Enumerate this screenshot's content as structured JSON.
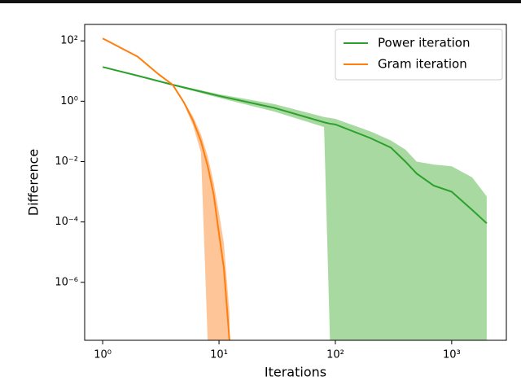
{
  "chart_data": {
    "type": "line",
    "xlabel": "Iterations",
    "ylabel": "Difference",
    "xscale": "log",
    "yscale": "log",
    "xlim": [
      0.7,
      2950
    ],
    "ylim": [
      1.2e-08,
      350
    ],
    "xticks": [
      {
        "value": 1,
        "label": "10⁰"
      },
      {
        "value": 10,
        "label": "10¹"
      },
      {
        "value": 100,
        "label": "10²"
      },
      {
        "value": 1000,
        "label": "10³"
      }
    ],
    "yticks": [
      {
        "value": 1e-06,
        "label": "10⁻⁶"
      },
      {
        "value": 0.0001,
        "label": "10⁻⁴"
      },
      {
        "value": 0.01,
        "label": "10⁻²"
      },
      {
        "value": 1,
        "label": "10⁰"
      },
      {
        "value": 100,
        "label": "10²"
      }
    ],
    "legend": "upper right",
    "series": [
      {
        "name": "Power iteration",
        "color": "#2ca02c",
        "band_color": "#a8d9a0",
        "x": [
          1,
          2,
          4,
          10,
          30,
          80,
          90,
          100,
          200,
          300,
          400,
          500,
          700,
          1000,
          1500,
          2000
        ],
        "values": [
          13.6,
          7,
          3.5,
          1.5,
          0.6,
          0.2,
          0.18,
          0.17,
          0.06,
          0.029,
          0.01,
          0.004,
          0.0016,
          0.001,
          0.00025,
          9e-05
        ],
        "upper": [
          13.6,
          7.2,
          3.7,
          1.7,
          0.8,
          0.3,
          0.28,
          0.26,
          0.1,
          0.05,
          0.025,
          0.01,
          0.008,
          0.007,
          0.003,
          0.0007
        ],
        "lower": [
          13.6,
          6.8,
          3.3,
          1.3,
          0.45,
          0.14,
          1e-08,
          1e-08,
          1e-08,
          1e-08,
          1e-08,
          1e-08,
          1e-08,
          1e-08,
          1e-08,
          1e-08
        ]
      },
      {
        "name": "Gram iteration",
        "color": "#ff7f0e",
        "band_color": "#fdc598",
        "x": [
          1,
          2,
          3,
          4,
          5,
          6,
          7,
          8,
          9,
          10,
          11,
          12.3
        ],
        "values": [
          120,
          30,
          8,
          3.5,
          0.9,
          0.22,
          0.047,
          0.007,
          0.0008,
          4e-05,
          3e-06,
          1.2e-08
        ],
        "upper": [
          120,
          30,
          8,
          3.5,
          1,
          0.3,
          0.08,
          0.015,
          0.002,
          0.0002,
          2e-05,
          1e-07
        ],
        "lower": [
          120,
          30,
          8,
          3.5,
          0.8,
          0.15,
          0.02,
          1e-08,
          1e-08,
          1e-08,
          1e-08,
          1e-08
        ]
      }
    ]
  }
}
